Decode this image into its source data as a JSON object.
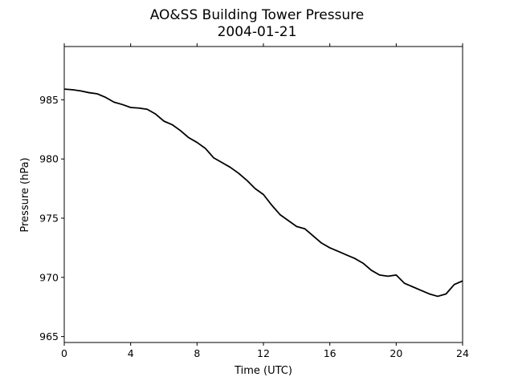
{
  "chart_data": {
    "type": "line",
    "title": "AO&SS Building Tower Pressure",
    "subtitle": "2004-01-21",
    "xlabel": "Time (UTC)",
    "ylabel": "Pressure (hPa)",
    "xlim": [
      0,
      24
    ],
    "ylim": [
      964.5,
      989.5
    ],
    "xticks": [
      0,
      4,
      8,
      12,
      16,
      20,
      24
    ],
    "yticks": [
      965,
      970,
      975,
      980,
      985
    ],
    "grid": false,
    "legend": "none",
    "line_color": "#000000",
    "series": [
      {
        "x": [
          0,
          0.5,
          1,
          1.5,
          2,
          2.5,
          3,
          3.5,
          4,
          4.5,
          5,
          5.5,
          6,
          6.5,
          7,
          7.5,
          8,
          8.5,
          9,
          9.5,
          10,
          10.5,
          11,
          11.5,
          12,
          12.5,
          13,
          13.5,
          14,
          14.5,
          15,
          15.5,
          16,
          16.5,
          17,
          17.5,
          18,
          18.5,
          19,
          19.5,
          20,
          20.5,
          21,
          21.5,
          22,
          22.5,
          23,
          23.5,
          24
        ],
        "y": [
          985.9,
          985.85,
          985.75,
          985.6,
          985.5,
          985.2,
          984.8,
          984.6,
          984.35,
          984.3,
          984.2,
          983.8,
          983.2,
          982.9,
          982.4,
          981.8,
          981.4,
          980.9,
          980.1,
          979.7,
          979.3,
          978.8,
          978.2,
          977.5,
          977.0,
          976.1,
          975.3,
          974.8,
          974.3,
          974.1,
          973.5,
          972.9,
          972.5,
          972.2,
          971.9,
          971.6,
          971.2,
          970.6,
          970.2,
          970.1,
          970.2,
          969.5,
          969.2,
          968.9,
          968.6,
          968.4,
          968.6,
          969.4,
          969.7
        ]
      }
    ]
  }
}
